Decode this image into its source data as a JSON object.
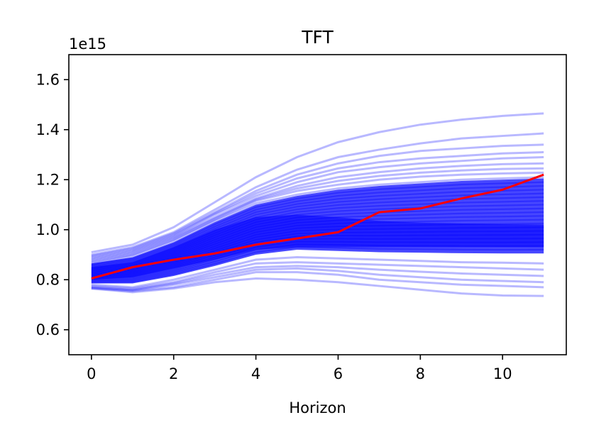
{
  "chart_data": {
    "type": "line",
    "title": "TFT",
    "xlabel": "Horizon",
    "ylabel": "",
    "scale_label": "1e15",
    "xlim": [
      -0.55,
      11.55
    ],
    "ylim": [
      0.5,
      1.7
    ],
    "xticks": [
      0,
      2,
      4,
      6,
      8,
      10
    ],
    "yticks": [
      0.6,
      0.8,
      1.0,
      1.2,
      1.4,
      1.6
    ],
    "ytick_labels": [
      "0.6",
      "0.8",
      "1.0",
      "1.2",
      "1.4",
      "1.6"
    ],
    "x": [
      0,
      1,
      2,
      3,
      4,
      5,
      6,
      7,
      8,
      9,
      10,
      11
    ],
    "grid": false,
    "ensemble_color": "#0000ff",
    "ensemble_light_color": "#bbbbff",
    "highlight_color": "#ff0000",
    "ensemble_paths": [
      [
        0.91,
        0.94,
        1.01,
        1.11,
        1.21,
        1.29,
        1.35,
        1.39,
        1.42,
        1.44,
        1.455,
        1.465
      ],
      [
        0.9,
        0.93,
        0.99,
        1.08,
        1.17,
        1.24,
        1.29,
        1.32,
        1.345,
        1.365,
        1.375,
        1.385
      ],
      [
        0.895,
        0.925,
        0.985,
        1.07,
        1.155,
        1.22,
        1.265,
        1.295,
        1.315,
        1.325,
        1.335,
        1.34
      ],
      [
        0.89,
        0.92,
        0.98,
        1.065,
        1.145,
        1.205,
        1.245,
        1.27,
        1.285,
        1.295,
        1.305,
        1.31
      ],
      [
        0.885,
        0.915,
        0.975,
        1.06,
        1.135,
        1.19,
        1.23,
        1.25,
        1.265,
        1.275,
        1.285,
        1.29
      ],
      [
        0.88,
        0.91,
        0.97,
        1.05,
        1.125,
        1.175,
        1.21,
        1.23,
        1.245,
        1.255,
        1.262,
        1.265
      ],
      [
        0.875,
        0.905,
        0.965,
        1.045,
        1.12,
        1.165,
        1.195,
        1.215,
        1.228,
        1.237,
        1.243,
        1.245
      ],
      [
        0.87,
        0.9,
        0.96,
        1.04,
        1.115,
        1.155,
        1.18,
        1.2,
        1.212,
        1.22,
        1.225,
        1.228
      ],
      [
        0.865,
        0.895,
        0.955,
        1.035,
        1.105,
        1.14,
        1.165,
        1.18,
        1.19,
        1.2,
        1.205,
        1.21
      ],
      [
        0.78,
        0.77,
        0.8,
        0.84,
        0.88,
        0.89,
        0.885,
        0.88,
        0.875,
        0.87,
        0.868,
        0.865
      ],
      [
        0.775,
        0.765,
        0.79,
        0.83,
        0.865,
        0.87,
        0.865,
        0.86,
        0.855,
        0.85,
        0.845,
        0.84
      ],
      [
        0.77,
        0.76,
        0.785,
        0.82,
        0.85,
        0.855,
        0.85,
        0.84,
        0.832,
        0.825,
        0.82,
        0.815
      ],
      [
        0.77,
        0.758,
        0.78,
        0.81,
        0.84,
        0.845,
        0.835,
        0.82,
        0.81,
        0.8,
        0.795,
        0.79
      ],
      [
        0.765,
        0.755,
        0.77,
        0.8,
        0.83,
        0.83,
        0.82,
        0.8,
        0.79,
        0.78,
        0.775,
        0.77
      ],
      [
        0.765,
        0.75,
        0.765,
        0.79,
        0.805,
        0.8,
        0.79,
        0.775,
        0.76,
        0.745,
        0.737,
        0.735
      ]
    ],
    "dense_band": {
      "upper": [
        0.865,
        0.89,
        0.95,
        1.03,
        1.1,
        1.135,
        1.16,
        1.175,
        1.185,
        1.195,
        1.2,
        1.205
      ],
      "lower": [
        0.785,
        0.785,
        0.815,
        0.855,
        0.9,
        0.92,
        0.915,
        0.91,
        0.908,
        0.906,
        0.905,
        0.905
      ],
      "core_upper": [
        0.85,
        0.87,
        0.93,
        1.0,
        1.05,
        1.06,
        1.05,
        1.035,
        1.028,
        1.025,
        1.022,
        1.02
      ],
      "core_lower": [
        0.8,
        0.81,
        0.845,
        0.88,
        0.92,
        0.93,
        0.93,
        0.93,
        0.93,
        0.93,
        0.93,
        0.93
      ]
    },
    "series": [
      {
        "values": [
          0.805,
          0.85,
          0.88,
          0.905,
          0.94,
          0.965,
          0.99,
          1.07,
          1.085,
          1.125,
          1.16,
          1.22
        ]
      }
    ]
  }
}
